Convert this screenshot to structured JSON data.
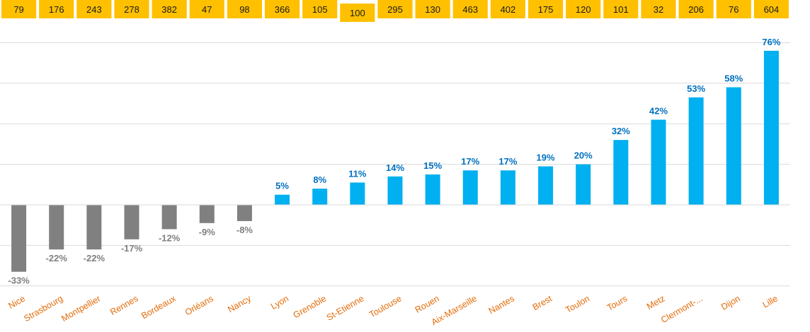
{
  "chart_data": {
    "type": "bar",
    "categories": [
      "Nice",
      "Strasbourg",
      "Montpellier",
      "Rennes",
      "Bordeaux",
      "Orléans",
      "Nancy",
      "Lyon",
      "Grenoble",
      "St-Etienne",
      "Toulouse",
      "Rouen",
      "Aix-Marseille",
      "Nantes",
      "Brest",
      "Toulon",
      "Tours",
      "Metz",
      "Clermont-...",
      "Dijon",
      "Lille"
    ],
    "values": [
      -33,
      -22,
      -22,
      -17,
      -12,
      -9,
      -8,
      5,
      8,
      11,
      14,
      15,
      17,
      17,
      19,
      20,
      32,
      42,
      53,
      58,
      76
    ],
    "value_labels": [
      "-33%",
      "-22%",
      "-22%",
      "-17%",
      "-12%",
      "-9%",
      "-8%",
      "5%",
      "8%",
      "11%",
      "14%",
      "15%",
      "17%",
      "17%",
      "19%",
      "20%",
      "32%",
      "42%",
      "53%",
      "58%",
      "76%"
    ],
    "top_row_values": [
      "79",
      "176",
      "243",
      "278",
      "382",
      "47",
      "98",
      "366",
      "105",
      "100",
      "295",
      "130",
      "463",
      "402",
      "175",
      "120",
      "101",
      "32",
      "206",
      "76",
      "604"
    ],
    "ylim": [
      -40,
      80
    ],
    "grid": true,
    "colors": {
      "negative_bar": "#808080",
      "positive_bar": "#00b0f0",
      "negative_label": "#7f7f7f",
      "positive_label": "#0070c0",
      "category_label": "#e46c0a",
      "top_box": "#ffc000",
      "gridline": "#d9d9d9"
    }
  }
}
